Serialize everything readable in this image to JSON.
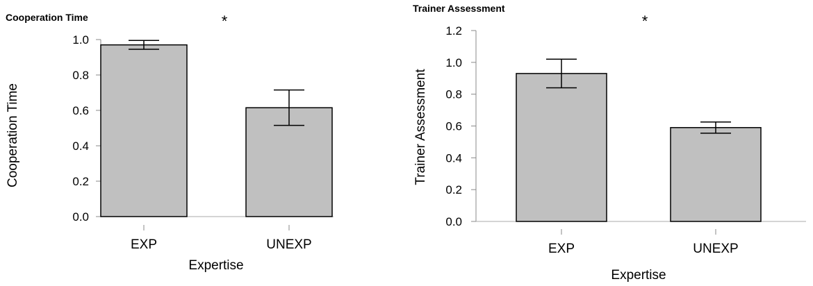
{
  "chart_data": [
    {
      "type": "bar",
      "title": "Cooperation Time",
      "xlabel": "Expertise",
      "ylabel": "Cooperation Time",
      "categories": [
        "EXP",
        "UNEXP"
      ],
      "values": [
        0.97,
        0.615
      ],
      "error": [
        0.025,
        0.1
      ],
      "ylim": [
        0,
        1.0
      ],
      "yticks": [
        0.0,
        0.2,
        0.4,
        0.6,
        0.8,
        1.0
      ],
      "ytick_labels": [
        "0.0",
        "0.2",
        "0.4",
        "0.6",
        "0.8",
        "1.0"
      ],
      "annotation": "*",
      "bar_color": "#c0c0c0",
      "grid": false
    },
    {
      "type": "bar",
      "title": "Trainer Assessment",
      "xlabel": "Expertise",
      "ylabel": "Trainer Assessment",
      "categories": [
        "EXP",
        "UNEXP"
      ],
      "values": [
        0.93,
        0.59
      ],
      "error": [
        0.09,
        0.035
      ],
      "ylim": [
        0,
        1.2
      ],
      "yticks": [
        0.0,
        0.2,
        0.4,
        0.6,
        0.8,
        1.0,
        1.2
      ],
      "ytick_labels": [
        "0.0",
        "0.2",
        "0.4",
        "0.6",
        "0.8",
        "1.0",
        "1.2"
      ],
      "annotation": "*",
      "bar_color": "#c0c0c0",
      "grid": false
    }
  ]
}
